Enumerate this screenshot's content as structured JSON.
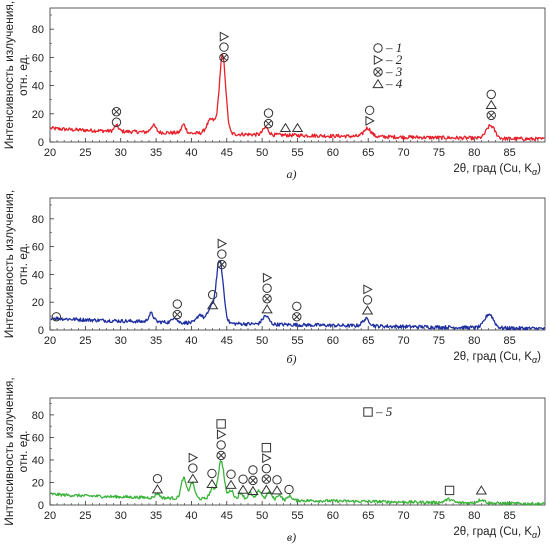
{
  "chart_data": [
    {
      "type": "line",
      "caption": "а)",
      "ylabel_line1": "Интенсивность излучения,",
      "ylabel_line2": "отн. ед.",
      "xlabel": "2θ, град (Cu, K",
      "xlabel_sub": "α",
      "xlim": [
        20,
        90
      ],
      "ylim": [
        0,
        95
      ],
      "xticks": [
        20,
        25,
        30,
        35,
        40,
        45,
        50,
        55,
        60,
        65,
        70,
        75,
        80,
        85
      ],
      "yticks": [
        0,
        20,
        40,
        60,
        80
      ],
      "line_color": "#e8202a",
      "baseline_start": 10,
      "baseline_end": 2,
      "peaks": [
        {
          "x": 29.4,
          "h": 4,
          "w": 0.3
        },
        {
          "x": 34.6,
          "h": 5,
          "w": 0.35
        },
        {
          "x": 38.9,
          "h": 6,
          "w": 0.3
        },
        {
          "x": 42.8,
          "h": 10,
          "w": 0.6
        },
        {
          "x": 44.4,
          "h": 55,
          "w": 0.45
        },
        {
          "x": 50.5,
          "h": 5,
          "w": 0.4
        },
        {
          "x": 64.9,
          "h": 6,
          "w": 0.5
        },
        {
          "x": 82.3,
          "h": 9,
          "w": 0.6
        }
      ],
      "markers": [
        {
          "x": 29.4,
          "stack": [
            "otimes",
            "circle"
          ]
        },
        {
          "x": 44.6,
          "stack": [
            "triangle-right",
            "circle",
            "otimes"
          ]
        },
        {
          "x": 50.9,
          "stack": [
            "circle",
            "otimes"
          ]
        },
        {
          "x": 53.3,
          "stack": [
            "triangle"
          ]
        },
        {
          "x": 55.0,
          "stack": [
            "triangle"
          ]
        },
        {
          "x": 65.2,
          "stack": [
            "circle",
            "triangle-right"
          ]
        },
        {
          "x": 82.4,
          "stack": [
            "circle",
            "triangle",
            "otimes"
          ]
        }
      ],
      "legend": [
        {
          "symbol": "circle",
          "label": "– 1"
        },
        {
          "symbol": "triangle-right",
          "label": "– 2"
        },
        {
          "symbol": "otimes",
          "label": "– 3"
        },
        {
          "symbol": "triangle",
          "label": "– 4"
        }
      ]
    },
    {
      "type": "line",
      "caption": "б)",
      "ylabel_line1": "Интенсивность излучения,",
      "ylabel_line2": "отн. ед.",
      "xlabel": "2θ, град (Cu, K",
      "xlabel_sub": "α",
      "xlim": [
        20,
        90
      ],
      "ylim": [
        0,
        95
      ],
      "xticks": [
        20,
        25,
        30,
        35,
        40,
        45,
        50,
        55,
        60,
        65,
        70,
        75,
        80,
        85
      ],
      "yticks": [
        0,
        20,
        40,
        60,
        80
      ],
      "line_color": "#1f2fa0",
      "baseline_start": 9,
      "baseline_end": 1,
      "peaks": [
        {
          "x": 34.3,
          "h": 6,
          "w": 0.35
        },
        {
          "x": 37.6,
          "h": 4,
          "w": 0.3
        },
        {
          "x": 41.2,
          "h": 6,
          "w": 0.4
        },
        {
          "x": 42.7,
          "h": 10,
          "w": 0.5
        },
        {
          "x": 44.0,
          "h": 45,
          "w": 0.5
        },
        {
          "x": 50.5,
          "h": 6,
          "w": 0.45
        },
        {
          "x": 64.7,
          "h": 5,
          "w": 0.5
        },
        {
          "x": 82.1,
          "h": 10,
          "w": 0.6
        }
      ],
      "markers": [
        {
          "x": 20.9,
          "stack": [
            "circle"
          ]
        },
        {
          "x": 38.0,
          "stack": [
            "circle",
            "otimes"
          ]
        },
        {
          "x": 43.0,
          "stack": [
            "circle",
            "triangle"
          ]
        },
        {
          "x": 44.3,
          "stack": [
            "triangle-right",
            "circle",
            "otimes"
          ]
        },
        {
          "x": 50.7,
          "stack": [
            "triangle-right",
            "circle",
            "otimes",
            "triangle"
          ]
        },
        {
          "x": 54.9,
          "stack": [
            "circle",
            "otimes"
          ]
        },
        {
          "x": 64.9,
          "stack": [
            "triangle-right",
            "circle",
            "triangle"
          ]
        }
      ],
      "legend": []
    },
    {
      "type": "line",
      "caption": "в)",
      "ylabel_line1": "Интенсивность излучения,",
      "ylabel_line2": "отн. ед.",
      "xlabel": "2θ, град (Cu, K",
      "xlabel_sub": "α",
      "xlim": [
        20,
        90
      ],
      "ylim": [
        0,
        95
      ],
      "xticks": [
        20,
        25,
        30,
        35,
        40,
        45,
        50,
        55,
        60,
        65,
        70,
        75,
        80,
        85
      ],
      "yticks": [
        0,
        20,
        40,
        60,
        80
      ],
      "line_color": "#3cb43c",
      "baseline_start": 10,
      "baseline_end": 1,
      "peaks": [
        {
          "x": 35.2,
          "h": 4,
          "w": 0.3
        },
        {
          "x": 38.9,
          "h": 18,
          "w": 0.35
        },
        {
          "x": 40.1,
          "h": 14,
          "w": 0.35
        },
        {
          "x": 43.0,
          "h": 9,
          "w": 0.4
        },
        {
          "x": 44.2,
          "h": 34,
          "w": 0.4
        },
        {
          "x": 45.6,
          "h": 8,
          "w": 0.35
        },
        {
          "x": 47.0,
          "h": 6,
          "w": 0.3
        },
        {
          "x": 48.3,
          "h": 6,
          "w": 0.3
        },
        {
          "x": 49.6,
          "h": 8,
          "w": 0.35
        },
        {
          "x": 51.0,
          "h": 7,
          "w": 0.35
        },
        {
          "x": 52.4,
          "h": 5,
          "w": 0.3
        },
        {
          "x": 53.9,
          "h": 4,
          "w": 0.3
        },
        {
          "x": 76.4,
          "h": 3,
          "w": 0.5
        },
        {
          "x": 81.0,
          "h": 3,
          "w": 0.5
        }
      ],
      "markers": [
        {
          "x": 35.2,
          "stack": [
            "circle",
            "triangle"
          ]
        },
        {
          "x": 40.2,
          "stack": [
            "triangle-right",
            "circle",
            "triangle"
          ]
        },
        {
          "x": 42.9,
          "stack": [
            "circle",
            "triangle"
          ]
        },
        {
          "x": 44.2,
          "stack": [
            "square",
            "triangle-right",
            "circle",
            "otimes"
          ]
        },
        {
          "x": 45.6,
          "stack": [
            "circle",
            "triangle"
          ]
        },
        {
          "x": 47.3,
          "stack": [
            "circle",
            "triangle"
          ]
        },
        {
          "x": 48.7,
          "stack": [
            "circle",
            "otimes",
            "triangle"
          ]
        },
        {
          "x": 50.6,
          "stack": [
            "square",
            "triangle-right",
            "circle",
            "otimes",
            "triangle"
          ]
        },
        {
          "x": 52.1,
          "stack": [
            "circle",
            "triangle"
          ]
        },
        {
          "x": 53.8,
          "stack": [
            "circle"
          ]
        },
        {
          "x": 76.5,
          "stack": [
            "square"
          ]
        },
        {
          "x": 81.0,
          "stack": [
            "triangle"
          ]
        }
      ],
      "legend": [
        {
          "symbol": "square",
          "label": "– 5"
        }
      ]
    }
  ]
}
